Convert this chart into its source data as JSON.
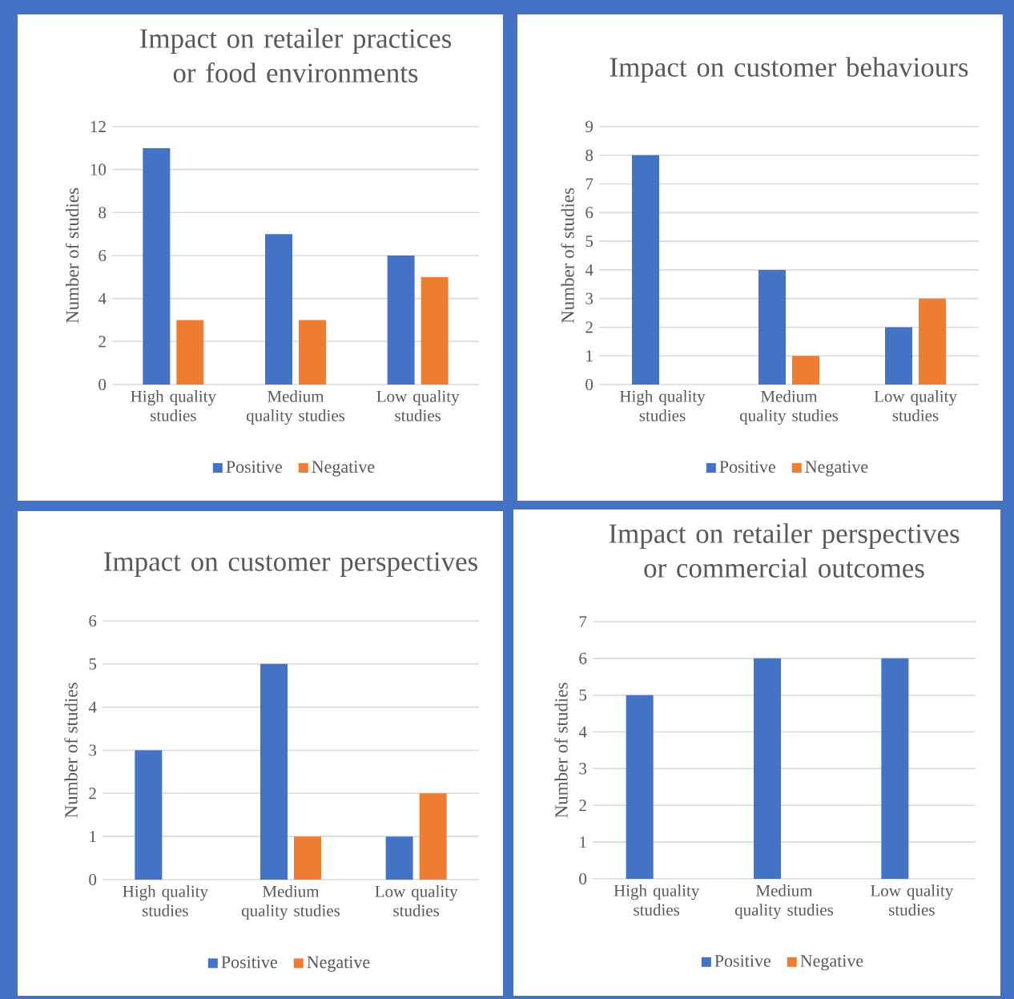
{
  "chart_data": [
    {
      "type": "bar",
      "title": "Impact on retailer practices or food environments",
      "ylabel": "Number of studies",
      "categories": [
        "High quality studies",
        "Medium quality studies",
        "Low quality studies"
      ],
      "series": [
        {
          "name": "Positive",
          "color": "#4472c4",
          "values": [
            11,
            7,
            6
          ]
        },
        {
          "name": "Negative",
          "color": "#ed7d31",
          "values": [
            3,
            3,
            5
          ]
        }
      ],
      "ylim": [
        0,
        12
      ],
      "yticks": [
        0,
        2,
        4,
        6,
        8,
        10,
        12
      ],
      "grid": "y",
      "legend": "bottom"
    },
    {
      "type": "bar",
      "title": "Impact on customer behaviours",
      "ylabel": "Number of studies",
      "categories": [
        "High quality studies",
        "Medium quality studies",
        "Low quality studies"
      ],
      "series": [
        {
          "name": "Positive",
          "color": "#4472c4",
          "values": [
            8,
            4,
            2
          ]
        },
        {
          "name": "Negative",
          "color": "#ed7d31",
          "values": [
            0,
            1,
            3
          ]
        }
      ],
      "ylim": [
        0,
        9
      ],
      "yticks": [
        0,
        1,
        2,
        3,
        4,
        5,
        6,
        7,
        8,
        9
      ],
      "grid": "y",
      "legend": "bottom"
    },
    {
      "type": "bar",
      "title": "Impact on customer perspectives",
      "ylabel": "Number of studies",
      "categories": [
        "High quality studies",
        "Medium quality studies",
        "Low quality studies"
      ],
      "series": [
        {
          "name": "Positive",
          "color": "#4472c4",
          "values": [
            3,
            5,
            1
          ]
        },
        {
          "name": "Negative",
          "color": "#ed7d31",
          "values": [
            0,
            1,
            2
          ]
        }
      ],
      "ylim": [
        0,
        6
      ],
      "yticks": [
        0,
        1,
        2,
        3,
        4,
        5,
        6
      ],
      "grid": "y",
      "legend": "bottom"
    },
    {
      "type": "bar",
      "title": "Impact on retailer perspectives or commercial outcomes",
      "ylabel": "Number of studies",
      "categories": [
        "High quality studies",
        "Medium quality studies",
        "Low quality studies"
      ],
      "series": [
        {
          "name": "Positive",
          "color": "#4472c4",
          "values": [
            5,
            6,
            6
          ]
        },
        {
          "name": "Negative",
          "color": "#ed7d31",
          "values": [
            0,
            0,
            0
          ]
        }
      ],
      "ylim": [
        0,
        7
      ],
      "yticks": [
        0,
        1,
        2,
        3,
        4,
        5,
        6,
        7
      ],
      "grid": "y",
      "legend": "bottom"
    }
  ]
}
